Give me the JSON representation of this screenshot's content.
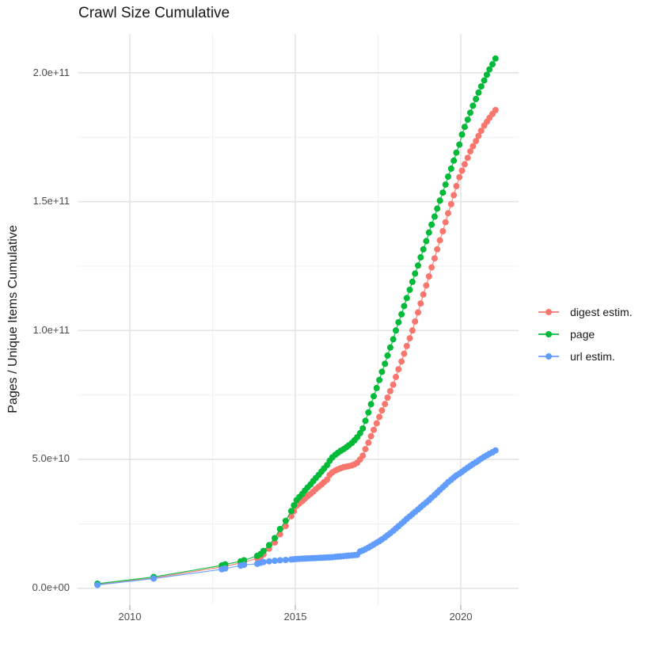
{
  "chart_data": {
    "type": "scatter",
    "title": "Crawl Size Cumulative",
    "xlabel": "",
    "ylabel": "Pages / Unique Items Cumulative",
    "grid": true,
    "legend_position": "right-center",
    "background": "#ffffff",
    "gridline_color_major": "#e4e4e4",
    "gridline_color_minor": "#f0f0f0",
    "tick_text_color": "#4d4d4d",
    "x_domain": [
      2008.42,
      2021.75
    ],
    "x_ticks": [
      2010,
      2015,
      2020
    ],
    "x_tick_labels": [
      "2010",
      "2015",
      "2020"
    ],
    "x_minor_ticks": [
      2012.5,
      2017.5
    ],
    "y_unit": "value_in_1e9 (multiply by 1e9)",
    "y_domain_e9": [
      -6.5,
      215
    ],
    "y_ticks_e9": [
      0,
      50,
      100,
      150,
      200
    ],
    "y_tick_labels": [
      "0.0e+00",
      "5.0e+10",
      "1.0e+11",
      "1.5e+11",
      "2.0e+11"
    ],
    "y_minor_ticks_e9": [
      25,
      75,
      125,
      175
    ],
    "series": [
      {
        "name": "digest-estim",
        "label": "digest estim.",
        "color": "#F8766D",
        "points": [
          [
            2009.02,
            1.5
          ],
          [
            2010.72,
            4
          ],
          [
            2012.78,
            8.3
          ],
          [
            2012.88,
            8.6
          ],
          [
            2013.35,
            9.8
          ],
          [
            2013.45,
            10.2
          ],
          [
            2013.85,
            11.6
          ],
          [
            2013.95,
            12.2
          ],
          [
            2014.04,
            13.2
          ],
          [
            2014.21,
            15.4
          ],
          [
            2014.38,
            17.8
          ],
          [
            2014.54,
            21
          ],
          [
            2014.71,
            24.2
          ],
          [
            2014.88,
            28
          ],
          [
            2014.96,
            30
          ],
          [
            2015.04,
            32
          ],
          [
            2015.12,
            32.9
          ],
          [
            2015.21,
            33.8
          ],
          [
            2015.29,
            34.8
          ],
          [
            2015.37,
            35.7
          ],
          [
            2015.46,
            36.6
          ],
          [
            2015.54,
            37.5
          ],
          [
            2015.62,
            38.5
          ],
          [
            2015.71,
            39.4
          ],
          [
            2015.79,
            40.3
          ],
          [
            2015.87,
            41.2
          ],
          [
            2015.96,
            42.2
          ],
          [
            2016.04,
            44
          ],
          [
            2016.12,
            45
          ],
          [
            2016.21,
            45.7
          ],
          [
            2016.29,
            46.2
          ],
          [
            2016.37,
            46.6
          ],
          [
            2016.46,
            47
          ],
          [
            2016.54,
            47.2
          ],
          [
            2016.62,
            47.4
          ],
          [
            2016.71,
            47.7
          ],
          [
            2016.79,
            48.1
          ],
          [
            2016.87,
            48.7
          ],
          [
            2016.96,
            50
          ],
          [
            2017.04,
            51.5
          ],
          [
            2017.12,
            54
          ],
          [
            2017.21,
            56.5
          ],
          [
            2017.29,
            59
          ],
          [
            2017.37,
            61.5
          ],
          [
            2017.46,
            64
          ],
          [
            2017.54,
            66.5
          ],
          [
            2017.62,
            69
          ],
          [
            2017.71,
            71.5
          ],
          [
            2017.79,
            74
          ],
          [
            2017.87,
            76.5
          ],
          [
            2017.96,
            79
          ],
          [
            2018.04,
            82
          ],
          [
            2018.12,
            85
          ],
          [
            2018.21,
            88
          ],
          [
            2018.29,
            91
          ],
          [
            2018.37,
            94
          ],
          [
            2018.46,
            97
          ],
          [
            2018.54,
            100
          ],
          [
            2018.62,
            103.5
          ],
          [
            2018.71,
            107
          ],
          [
            2018.79,
            110.5
          ],
          [
            2018.87,
            114
          ],
          [
            2018.96,
            117.5
          ],
          [
            2019.04,
            121
          ],
          [
            2019.12,
            124.5
          ],
          [
            2019.21,
            128
          ],
          [
            2019.29,
            131.5
          ],
          [
            2019.37,
            135
          ],
          [
            2019.46,
            138.5
          ],
          [
            2019.54,
            142
          ],
          [
            2019.62,
            145.5
          ],
          [
            2019.71,
            149
          ],
          [
            2019.79,
            152.5
          ],
          [
            2019.87,
            156
          ],
          [
            2019.96,
            159.5
          ],
          [
            2020.04,
            162
          ],
          [
            2020.12,
            164.5
          ],
          [
            2020.21,
            167
          ],
          [
            2020.29,
            169.5
          ],
          [
            2020.37,
            171.5
          ],
          [
            2020.46,
            173.5
          ],
          [
            2020.54,
            175.5
          ],
          [
            2020.62,
            177.5
          ],
          [
            2020.71,
            179.5
          ],
          [
            2020.79,
            181
          ],
          [
            2020.87,
            182.5
          ],
          [
            2020.96,
            184
          ],
          [
            2021.05,
            185.5
          ]
        ]
      },
      {
        "name": "page",
        "label": "page",
        "color": "#00BA38",
        "points": [
          [
            2009.02,
            1.8
          ],
          [
            2010.72,
            4.4
          ],
          [
            2012.78,
            8.9
          ],
          [
            2012.88,
            9.3
          ],
          [
            2013.35,
            10.5
          ],
          [
            2013.45,
            10.9
          ],
          [
            2013.85,
            12.6
          ],
          [
            2013.95,
            13.3
          ],
          [
            2014.04,
            14.5
          ],
          [
            2014.21,
            16.8
          ],
          [
            2014.38,
            19.5
          ],
          [
            2014.54,
            23
          ],
          [
            2014.71,
            26.2
          ],
          [
            2014.88,
            30
          ],
          [
            2014.96,
            32.2
          ],
          [
            2015.04,
            34.2
          ],
          [
            2015.12,
            35.4
          ],
          [
            2015.21,
            36.6
          ],
          [
            2015.29,
            37.9
          ],
          [
            2015.37,
            39.1
          ],
          [
            2015.46,
            40.3
          ],
          [
            2015.54,
            41.6
          ],
          [
            2015.62,
            42.8
          ],
          [
            2015.71,
            44
          ],
          [
            2015.79,
            45.3
          ],
          [
            2015.87,
            46.5
          ],
          [
            2015.96,
            47.8
          ],
          [
            2016.04,
            49.5
          ],
          [
            2016.12,
            50.8
          ],
          [
            2016.21,
            51.8
          ],
          [
            2016.29,
            52.6
          ],
          [
            2016.37,
            53.3
          ],
          [
            2016.46,
            54
          ],
          [
            2016.54,
            54.7
          ],
          [
            2016.62,
            55.5
          ],
          [
            2016.71,
            56.4
          ],
          [
            2016.79,
            57.4
          ],
          [
            2016.87,
            58.6
          ],
          [
            2016.96,
            60.2
          ],
          [
            2017.04,
            62
          ],
          [
            2017.12,
            65
          ],
          [
            2017.21,
            68.2
          ],
          [
            2017.29,
            71.4
          ],
          [
            2017.37,
            74.5
          ],
          [
            2017.46,
            77.7
          ],
          [
            2017.54,
            80.8
          ],
          [
            2017.62,
            84
          ],
          [
            2017.71,
            87.1
          ],
          [
            2017.79,
            90.3
          ],
          [
            2017.87,
            93.4
          ],
          [
            2017.96,
            96.6
          ],
          [
            2018.04,
            100
          ],
          [
            2018.12,
            103.2
          ],
          [
            2018.21,
            106.3
          ],
          [
            2018.29,
            109.5
          ],
          [
            2018.37,
            112.6
          ],
          [
            2018.46,
            115.8
          ],
          [
            2018.54,
            118.9
          ],
          [
            2018.62,
            122.1
          ],
          [
            2018.71,
            125.2
          ],
          [
            2018.79,
            128.4
          ],
          [
            2018.87,
            131.5
          ],
          [
            2018.96,
            134.7
          ],
          [
            2019.04,
            138
          ],
          [
            2019.12,
            141.1
          ],
          [
            2019.21,
            144.2
          ],
          [
            2019.29,
            147.3
          ],
          [
            2019.37,
            150.4
          ],
          [
            2019.46,
            153.5
          ],
          [
            2019.54,
            156.6
          ],
          [
            2019.62,
            159.7
          ],
          [
            2019.71,
            162.8
          ],
          [
            2019.79,
            165.9
          ],
          [
            2019.87,
            169
          ],
          [
            2019.96,
            172.1
          ],
          [
            2020.04,
            176
          ],
          [
            2020.12,
            179
          ],
          [
            2020.21,
            181.8
          ],
          [
            2020.29,
            184.5
          ],
          [
            2020.37,
            187.2
          ],
          [
            2020.46,
            189.8
          ],
          [
            2020.54,
            192.3
          ],
          [
            2020.62,
            194.7
          ],
          [
            2020.71,
            197
          ],
          [
            2020.79,
            199.2
          ],
          [
            2020.87,
            201.3
          ],
          [
            2020.96,
            203.3
          ],
          [
            2021.05,
            205.5
          ]
        ]
      },
      {
        "name": "url-estim",
        "label": "url estim.",
        "color": "#619CFF",
        "points": [
          [
            2009.02,
            1.3
          ],
          [
            2010.72,
            3.8
          ],
          [
            2012.78,
            7.4
          ],
          [
            2012.88,
            7.7
          ],
          [
            2013.35,
            8.8
          ],
          [
            2013.45,
            9.1
          ],
          [
            2013.85,
            9.5
          ],
          [
            2013.95,
            9.9
          ],
          [
            2014.04,
            10.2
          ],
          [
            2014.21,
            10.5
          ],
          [
            2014.38,
            10.7
          ],
          [
            2014.54,
            10.9
          ],
          [
            2014.71,
            11
          ],
          [
            2014.88,
            11.2
          ],
          [
            2014.96,
            11.3
          ],
          [
            2015.04,
            11.4
          ],
          [
            2015.12,
            11.45
          ],
          [
            2015.21,
            11.5
          ],
          [
            2015.29,
            11.55
          ],
          [
            2015.37,
            11.6
          ],
          [
            2015.46,
            11.65
          ],
          [
            2015.54,
            11.7
          ],
          [
            2015.62,
            11.75
          ],
          [
            2015.71,
            11.8
          ],
          [
            2015.79,
            11.85
          ],
          [
            2015.87,
            11.9
          ],
          [
            2015.96,
            11.95
          ],
          [
            2016.04,
            12
          ],
          [
            2016.12,
            12.1
          ],
          [
            2016.21,
            12.2
          ],
          [
            2016.29,
            12.3
          ],
          [
            2016.37,
            12.4
          ],
          [
            2016.46,
            12.5
          ],
          [
            2016.54,
            12.6
          ],
          [
            2016.62,
            12.7
          ],
          [
            2016.71,
            12.8
          ],
          [
            2016.79,
            12.9
          ],
          [
            2016.87,
            13
          ],
          [
            2016.96,
            14.3
          ],
          [
            2017.04,
            14.7
          ],
          [
            2017.12,
            15.2
          ],
          [
            2017.21,
            15.8
          ],
          [
            2017.29,
            16.4
          ],
          [
            2017.37,
            17
          ],
          [
            2017.46,
            17.7
          ],
          [
            2017.54,
            18.3
          ],
          [
            2017.62,
            19
          ],
          [
            2017.71,
            19.8
          ],
          [
            2017.79,
            20.6
          ],
          [
            2017.87,
            21.4
          ],
          [
            2017.96,
            22.3
          ],
          [
            2018.04,
            23.2
          ],
          [
            2018.12,
            24.1
          ],
          [
            2018.21,
            25.1
          ],
          [
            2018.29,
            26
          ],
          [
            2018.37,
            27
          ],
          [
            2018.46,
            27.9
          ],
          [
            2018.54,
            28.8
          ],
          [
            2018.62,
            29.7
          ],
          [
            2018.71,
            30.6
          ],
          [
            2018.79,
            31.5
          ],
          [
            2018.87,
            32.4
          ],
          [
            2018.96,
            33.3
          ],
          [
            2019.04,
            34.2
          ],
          [
            2019.12,
            35.2
          ],
          [
            2019.21,
            36.2
          ],
          [
            2019.29,
            37.2
          ],
          [
            2019.37,
            38.2
          ],
          [
            2019.46,
            39.2
          ],
          [
            2019.54,
            40.2
          ],
          [
            2019.62,
            41.2
          ],
          [
            2019.71,
            42.1
          ],
          [
            2019.79,
            43
          ],
          [
            2019.87,
            43.8
          ],
          [
            2019.96,
            44.5
          ],
          [
            2020.04,
            45.2
          ],
          [
            2020.12,
            46
          ],
          [
            2020.21,
            46.8
          ],
          [
            2020.29,
            47.5
          ],
          [
            2020.37,
            48.2
          ],
          [
            2020.46,
            48.9
          ],
          [
            2020.54,
            49.6
          ],
          [
            2020.62,
            50.3
          ],
          [
            2020.71,
            51
          ],
          [
            2020.79,
            51.6
          ],
          [
            2020.87,
            52.2
          ],
          [
            2020.96,
            52.8
          ],
          [
            2021.05,
            53.5
          ]
        ]
      }
    ]
  }
}
